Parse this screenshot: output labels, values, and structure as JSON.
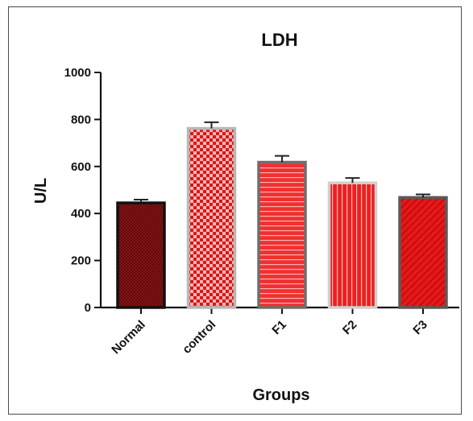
{
  "chart_data": {
    "type": "bar",
    "title": "LDH",
    "xlabel": "Groups",
    "ylabel": "U/L",
    "ylim": [
      0,
      1000
    ],
    "yticks": [
      0,
      200,
      400,
      600,
      800,
      1000
    ],
    "categories": [
      "Normal",
      "control",
      "F1",
      "F2",
      "F3"
    ],
    "values": [
      445,
      762,
      618,
      530,
      468
    ],
    "errors": [
      14,
      26,
      27,
      21,
      13
    ],
    "bar_styles": [
      {
        "pattern": "dense-checker",
        "fill": "#8b1414",
        "accent": "#5a0a0a",
        "border": "#111111"
      },
      {
        "pattern": "checker",
        "fill": "#f2a0a0",
        "accent": "#d81818",
        "border": "#b8b8b8"
      },
      {
        "pattern": "horizontal-stripes",
        "fill": "#f03030",
        "accent": "#ffb0b0",
        "border": "#6e6e6e"
      },
      {
        "pattern": "vertical-stripes",
        "fill": "#ec2020",
        "accent": "#ffb8b8",
        "border": "#cfcfcf"
      },
      {
        "pattern": "diagonal-stripes",
        "fill": "#e81818",
        "accent": "#b80c0c",
        "border": "#5a5a5a"
      }
    ],
    "grid": false,
    "legend": "none"
  }
}
